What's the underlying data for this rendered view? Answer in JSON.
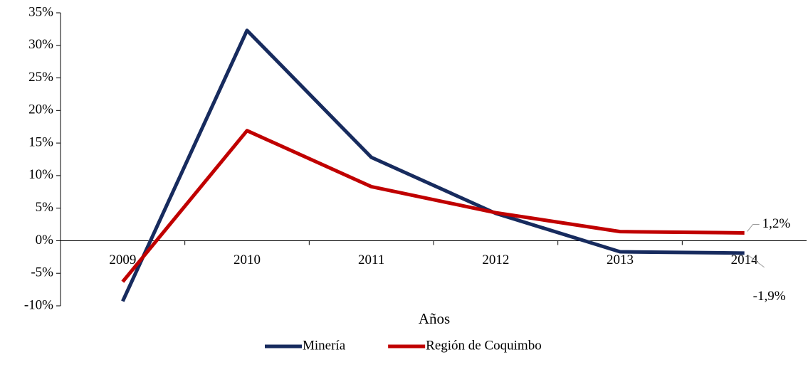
{
  "chart_data": {
    "type": "line",
    "x_label": "Años",
    "categories": [
      "2009",
      "2010",
      "2011",
      "2012",
      "2013",
      "2014"
    ],
    "series": [
      {
        "name": "Minería",
        "color": "#172b5e",
        "values": [
          -9.3,
          32.3,
          12.8,
          4.2,
          -1.7,
          -1.9
        ],
        "value_labels": [
          null,
          null,
          null,
          null,
          null,
          "-1,9%"
        ]
      },
      {
        "name": "Región de Coquimbo",
        "color": "#c00000",
        "values": [
          -6.3,
          16.9,
          8.3,
          4.3,
          1.4,
          1.2
        ],
        "value_labels": [
          null,
          null,
          null,
          null,
          null,
          "1,2%"
        ]
      }
    ],
    "ylim": [
      -10,
      35
    ],
    "yticks": [
      {
        "value": -10,
        "label": "-10%"
      },
      {
        "value": -5,
        "label": "-5%"
      },
      {
        "value": 0,
        "label": "0%"
      },
      {
        "value": 5,
        "label": "5%"
      },
      {
        "value": 10,
        "label": "10%"
      },
      {
        "value": 15,
        "label": "15%"
      },
      {
        "value": 20,
        "label": "20%"
      },
      {
        "value": 25,
        "label": "25%"
      },
      {
        "value": 30,
        "label": "30%"
      },
      {
        "value": 35,
        "label": "35%"
      }
    ],
    "legend": "bottom"
  }
}
